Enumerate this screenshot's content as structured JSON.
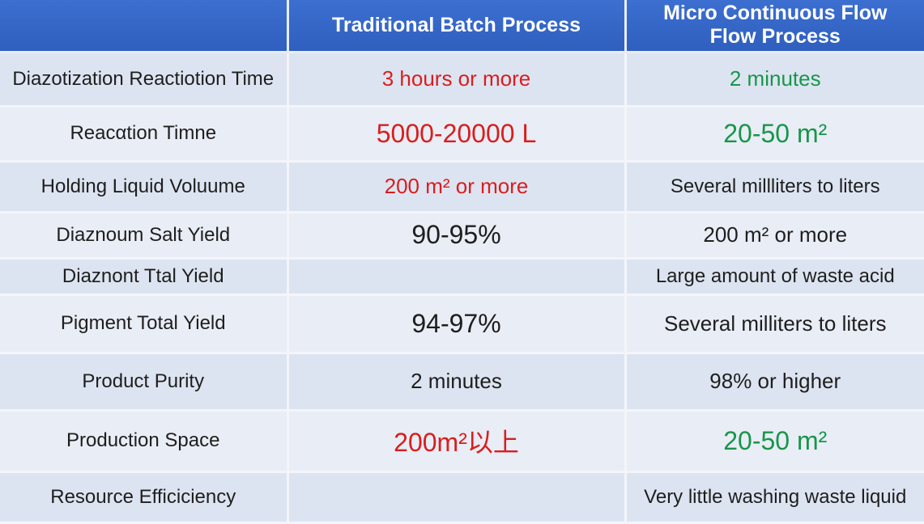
{
  "header": {
    "col1": "",
    "col2": "Traditional Batch Process",
    "col3_line1": "Micro Continuous Flow",
    "col3_line2": "Flow Process"
  },
  "rows": [
    {
      "label": "Diazotization Reactiotion Time",
      "batch": "3 hours or more",
      "flow": "2 minutes"
    },
    {
      "label": "Reacαtion Timne",
      "batch": "5000-20000 L",
      "flow": "20-50 m²"
    },
    {
      "label": "Holding Liquid Voluume",
      "batch": "200 m² or more",
      "flow": "Several millliters to liters"
    },
    {
      "label": "Diaznoum Salt Yield",
      "batch": "90-95%",
      "flow": "200 m² or more"
    },
    {
      "label": "Diaznont Ttal Yield",
      "batch": "",
      "flow": "Large amount of waste acid"
    },
    {
      "label": "Pigment Total Yield",
      "batch": "94-97%",
      "flow": "Several milliters to liters"
    },
    {
      "label": "Product Purity",
      "batch": "2 minutes",
      "flow": "98% or higher"
    },
    {
      "label": "Production Space",
      "batch": "200m²以上",
      "flow": "20-50 m²"
    },
    {
      "label": "Resource Efficiciency",
      "batch": "",
      "flow": "Very little washing waste liquid"
    }
  ],
  "colors": {
    "header_bg": "#3366cc",
    "highlight_red": "#d81e1e",
    "highlight_green": "#17964a"
  }
}
